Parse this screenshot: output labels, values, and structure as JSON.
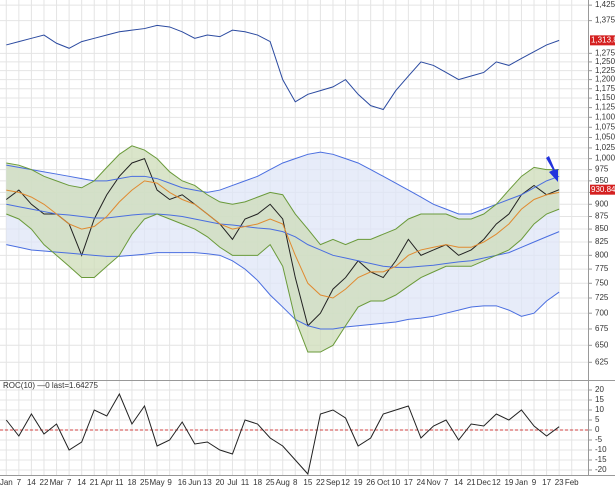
{
  "chart_data": [
    {
      "type": "line",
      "log": true,
      "grid": true,
      "categories": [
        "Jan",
        "7",
        "14",
        "22",
        "Mar",
        "7",
        "14",
        "21",
        "Apr",
        "11",
        "18",
        "25",
        "May",
        "9",
        "16",
        "Jun",
        "13",
        "20",
        "Jul",
        "11",
        "18",
        "25",
        "Aug",
        "8",
        "15",
        "22",
        "Sep",
        "12",
        "19",
        "26",
        "Oct",
        "10",
        "17",
        "24",
        "Nov",
        "7",
        "14",
        "21",
        "Dec",
        "12",
        "19",
        "Jan",
        "9",
        "17",
        "23",
        "Feb"
      ],
      "ylim": [
        600,
        1442
      ],
      "yticks": [
        {
          "value": 1425,
          "label": "1,425"
        },
        {
          "value": 1375,
          "label": "1,375"
        },
        {
          "value": 1275,
          "label": "1,275"
        },
        {
          "value": 1250,
          "label": "1,250"
        },
        {
          "value": 1225,
          "label": "1,225"
        },
        {
          "value": 1200,
          "label": "1,200"
        },
        {
          "value": 1175,
          "label": "1,175"
        },
        {
          "value": 1150,
          "label": "1,150"
        },
        {
          "value": 1125,
          "label": "1,125"
        },
        {
          "value": 1100,
          "label": "1,100"
        },
        {
          "value": 1075,
          "label": "1,075"
        },
        {
          "value": 1050,
          "label": "1,050"
        },
        {
          "value": 1025,
          "label": "1,025"
        },
        {
          "value": 1000,
          "label": "1,000"
        },
        975,
        950,
        925,
        900,
        875,
        850,
        825,
        800,
        775,
        750,
        725,
        700,
        675,
        650,
        625
      ],
      "bands": [
        {
          "color": "#dfe5f7",
          "series": [
            2,
            4
          ]
        },
        {
          "color": "#cddcb8",
          "series": [
            5,
            6
          ]
        }
      ],
      "series": [
        {
          "color": "#2b4aa0",
          "last_label": "1,313.8",
          "values": [
            1300,
            1310,
            1320,
            1330,
            1305,
            1290,
            1310,
            1320,
            1330,
            1340,
            1345,
            1350,
            1360,
            1355,
            1340,
            1320,
            1330,
            1325,
            1345,
            1340,
            1330,
            1310,
            1200,
            1140,
            1160,
            1170,
            1180,
            1200,
            1160,
            1130,
            1120,
            1170,
            1210,
            1250,
            1240,
            1220,
            1200,
            1210,
            1220,
            1250,
            1240,
            1260,
            1280,
            1300,
            1313.8,
            null
          ]
        },
        {
          "color": "#222222",
          "last_label": "930.84",
          "values": [
            910,
            930,
            900,
            880,
            880,
            860,
            800,
            870,
            920,
            960,
            990,
            1000,
            930,
            910,
            920,
            900,
            880,
            860,
            830,
            870,
            880,
            900,
            870,
            760,
            680,
            700,
            740,
            760,
            790,
            770,
            760,
            790,
            830,
            800,
            810,
            820,
            800,
            810,
            830,
            860,
            880,
            920,
            940,
            920,
            930.84,
            null
          ]
        },
        {
          "color": "#4a6ee0",
          "values": [
            985,
            980,
            975,
            970,
            965,
            960,
            955,
            950,
            950,
            955,
            960,
            960,
            955,
            945,
            935,
            930,
            925,
            930,
            940,
            950,
            960,
            975,
            990,
            1000,
            1010,
            1015,
            1010,
            1000,
            990,
            975,
            960,
            945,
            930,
            915,
            900,
            890,
            880,
            880,
            890,
            900,
            910,
            920,
            935,
            950,
            960,
            null
          ]
        },
        {
          "color": "#4a6ee0",
          "values": [
            900,
            895,
            890,
            885,
            880,
            878,
            875,
            872,
            872,
            875,
            878,
            880,
            880,
            878,
            875,
            870,
            865,
            860,
            858,
            855,
            852,
            850,
            845,
            835,
            820,
            810,
            800,
            795,
            790,
            785,
            780,
            778,
            778,
            780,
            782,
            785,
            788,
            790,
            795,
            800,
            805,
            815,
            825,
            835,
            845,
            null
          ]
        },
        {
          "color": "#4a6ee0",
          "values": [
            820,
            815,
            810,
            808,
            806,
            804,
            802,
            800,
            798,
            798,
            800,
            802,
            805,
            805,
            805,
            805,
            803,
            800,
            790,
            775,
            755,
            730,
            710,
            690,
            680,
            675,
            675,
            678,
            680,
            682,
            684,
            686,
            690,
            692,
            695,
            700,
            705,
            710,
            712,
            712,
            705,
            695,
            700,
            720,
            735,
            null
          ]
        },
        {
          "color": "#6a9a3a",
          "values": [
            990,
            985,
            975,
            960,
            950,
            940,
            935,
            950,
            980,
            1010,
            1030,
            1020,
            1000,
            970,
            950,
            940,
            920,
            905,
            900,
            905,
            915,
            925,
            920,
            880,
            850,
            820,
            830,
            820,
            830,
            830,
            840,
            850,
            870,
            880,
            880,
            880,
            870,
            870,
            880,
            900,
            930,
            960,
            980,
            975,
            975,
            null
          ]
        },
        {
          "color": "#6a9a3a",
          "values": [
            880,
            870,
            850,
            820,
            800,
            780,
            760,
            760,
            780,
            800,
            840,
            870,
            880,
            870,
            860,
            850,
            835,
            815,
            800,
            800,
            800,
            820,
            780,
            690,
            640,
            640,
            650,
            680,
            710,
            720,
            720,
            730,
            745,
            760,
            770,
            780,
            780,
            780,
            790,
            800,
            810,
            830,
            860,
            880,
            890,
            null
          ]
        },
        {
          "color": "#e08a30",
          "values": [
            930,
            925,
            915,
            900,
            880,
            860,
            850,
            855,
            875,
            905,
            930,
            950,
            945,
            925,
            910,
            900,
            880,
            860,
            850,
            855,
            860,
            870,
            860,
            800,
            750,
            730,
            725,
            740,
            760,
            770,
            770,
            780,
            800,
            810,
            815,
            820,
            815,
            815,
            825,
            840,
            860,
            890,
            910,
            920,
            925,
            null
          ]
        }
      ]
    },
    {
      "type": "line",
      "title": "ROC(10) —0 last=1.64275",
      "grid": true,
      "ylim": [
        -22.5,
        25
      ],
      "yticks": [
        20,
        15,
        10,
        5,
        0,
        -5,
        -10,
        -15,
        -20
      ],
      "reference_line": {
        "value": 0,
        "color": "#d04040"
      },
      "series": [
        {
          "color": "#222222",
          "values": [
            5,
            -3,
            8,
            -2,
            3,
            -10,
            -6,
            10,
            7,
            18,
            3,
            12,
            -8,
            -5,
            4,
            -7,
            -6,
            -10,
            -12,
            5,
            3,
            -4,
            -8,
            -15,
            -22,
            8,
            10,
            6,
            -8,
            -4,
            8,
            10,
            12,
            -4,
            2,
            5,
            -5,
            3,
            2,
            8,
            5,
            10,
            2,
            -3,
            1.64275,
            null
          ]
        }
      ]
    }
  ]
}
